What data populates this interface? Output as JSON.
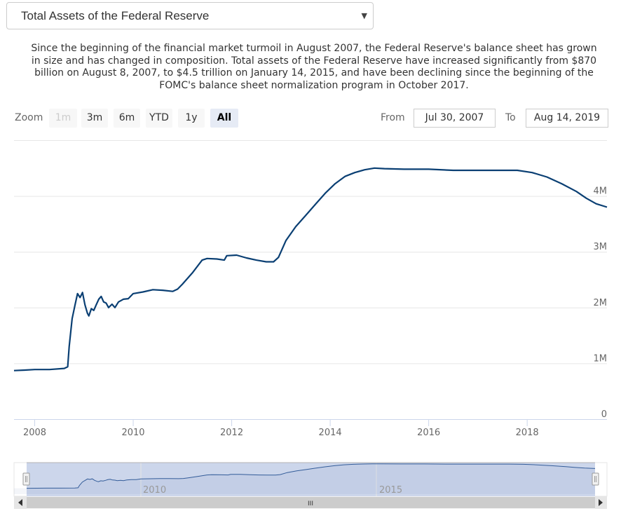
{
  "selector": {
    "label": "Total Assets of the Federal Reserve"
  },
  "description": "Since the beginning of the financial market turmoil in August 2007, the Federal Reserve's balance sheet has grown in size and has changed in composition. Total assets of the Federal Reserve have increased significantly from $870 billion on August 8, 2007, to $4.5 trillion on January 14, 2015, and have been declining since the beginning of the FOMC's balance sheet normalization program in October 2017.",
  "zoom": {
    "label": "Zoom",
    "buttons": [
      {
        "label": "1m",
        "state": "disabled"
      },
      {
        "label": "3m",
        "state": "normal"
      },
      {
        "label": "6m",
        "state": "normal"
      },
      {
        "label": "YTD",
        "state": "normal"
      },
      {
        "label": "1y",
        "state": "normal"
      },
      {
        "label": "All",
        "state": "active"
      }
    ]
  },
  "range": {
    "from_label": "From",
    "from_value": "Jul 30, 2007",
    "to_label": "To",
    "to_value": "Aug 14, 2019"
  },
  "navigator": {
    "labels": [
      "2010",
      "2015"
    ],
    "scroll_grip": "III"
  },
  "colors": {
    "line": "#0a3f73",
    "navigator_fill": "#ccd6eb",
    "navigator_line": "#335c99"
  },
  "chart_data": {
    "type": "line",
    "title": "",
    "xlabel": "",
    "ylabel": "",
    "xlim": [
      2007.58,
      2019.62
    ],
    "ylim": [
      0,
      5
    ],
    "y_unit": "M",
    "x_tick_labels": [
      "2008",
      "2010",
      "2012",
      "2014",
      "2016",
      "2018"
    ],
    "y_tick_labels": [
      "0",
      "1M",
      "2M",
      "3M",
      "4M"
    ],
    "grid": true,
    "legend": "none",
    "series": [
      {
        "values": [
          [
            2007.58,
            0.87
          ],
          [
            2007.8,
            0.88
          ],
          [
            2008.0,
            0.89
          ],
          [
            2008.3,
            0.89
          ],
          [
            2008.6,
            0.91
          ],
          [
            2008.67,
            0.94
          ],
          [
            2008.7,
            1.3
          ],
          [
            2008.76,
            1.8
          ],
          [
            2008.82,
            2.05
          ],
          [
            2008.87,
            2.25
          ],
          [
            2008.92,
            2.18
          ],
          [
            2008.97,
            2.27
          ],
          [
            2009.02,
            2.05
          ],
          [
            2009.07,
            1.9
          ],
          [
            2009.1,
            1.85
          ],
          [
            2009.15,
            1.98
          ],
          [
            2009.2,
            1.95
          ],
          [
            2009.25,
            2.05
          ],
          [
            2009.3,
            2.15
          ],
          [
            2009.35,
            2.2
          ],
          [
            2009.4,
            2.1
          ],
          [
            2009.45,
            2.08
          ],
          [
            2009.5,
            2.0
          ],
          [
            2009.57,
            2.06
          ],
          [
            2009.63,
            2.0
          ],
          [
            2009.7,
            2.1
          ],
          [
            2009.8,
            2.15
          ],
          [
            2009.9,
            2.16
          ],
          [
            2010.0,
            2.25
          ],
          [
            2010.2,
            2.28
          ],
          [
            2010.4,
            2.32
          ],
          [
            2010.6,
            2.31
          ],
          [
            2010.8,
            2.29
          ],
          [
            2010.9,
            2.33
          ],
          [
            2011.0,
            2.42
          ],
          [
            2011.2,
            2.62
          ],
          [
            2011.4,
            2.85
          ],
          [
            2011.5,
            2.88
          ],
          [
            2011.7,
            2.87
          ],
          [
            2011.85,
            2.85
          ],
          [
            2011.9,
            2.93
          ],
          [
            2012.1,
            2.94
          ],
          [
            2012.3,
            2.89
          ],
          [
            2012.5,
            2.85
          ],
          [
            2012.7,
            2.82
          ],
          [
            2012.85,
            2.82
          ],
          [
            2012.95,
            2.9
          ],
          [
            2013.1,
            3.2
          ],
          [
            2013.3,
            3.45
          ],
          [
            2013.5,
            3.65
          ],
          [
            2013.7,
            3.85
          ],
          [
            2013.9,
            4.05
          ],
          [
            2014.1,
            4.22
          ],
          [
            2014.3,
            4.35
          ],
          [
            2014.5,
            4.42
          ],
          [
            2014.7,
            4.47
          ],
          [
            2014.9,
            4.5
          ],
          [
            2015.1,
            4.49
          ],
          [
            2015.5,
            4.48
          ],
          [
            2016.0,
            4.48
          ],
          [
            2016.5,
            4.46
          ],
          [
            2017.0,
            4.46
          ],
          [
            2017.5,
            4.46
          ],
          [
            2017.8,
            4.46
          ],
          [
            2018.1,
            4.42
          ],
          [
            2018.4,
            4.34
          ],
          [
            2018.7,
            4.22
          ],
          [
            2019.0,
            4.08
          ],
          [
            2019.2,
            3.96
          ],
          [
            2019.4,
            3.86
          ],
          [
            2019.62,
            3.8
          ]
        ]
      }
    ]
  }
}
